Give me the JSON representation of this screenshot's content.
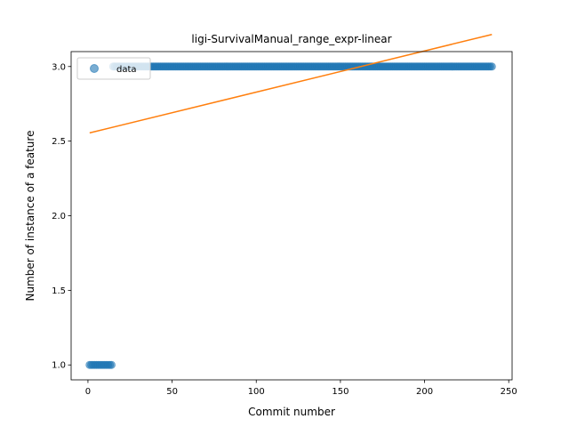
{
  "chart_data": {
    "type": "scatter",
    "title": "ligi-SurvivalManual_range_expr-linear",
    "xlabel": "Commit number",
    "ylabel": "Number of instance of a feature",
    "xlim": [
      -10,
      252
    ],
    "ylim": [
      0.9,
      3.1
    ],
    "xticks": [
      0,
      50,
      100,
      150,
      200,
      250
    ],
    "yticks": [
      1.0,
      1.5,
      2.0,
      2.5,
      3.0
    ],
    "xtick_labels": [
      "0",
      "50",
      "100",
      "150",
      "200",
      "250"
    ],
    "ytick_labels": [
      "1.0",
      "1.5",
      "2.0",
      "2.5",
      "3.0"
    ],
    "grid": false,
    "legend": {
      "position": "top-left",
      "entries": [
        "data"
      ]
    },
    "series": [
      {
        "name": "data",
        "kind": "scatter",
        "color": "#1f77b4",
        "alpha": 0.6,
        "segments": [
          {
            "x_start": 1,
            "x_end": 14,
            "y": 1.0
          },
          {
            "x_start": 15,
            "x_end": 240,
            "y": 3.0
          }
        ]
      },
      {
        "kind": "line",
        "color": "#ff7f0e",
        "points": [
          [
            1,
            2.555
          ],
          [
            240,
            3.215
          ]
        ]
      }
    ]
  }
}
